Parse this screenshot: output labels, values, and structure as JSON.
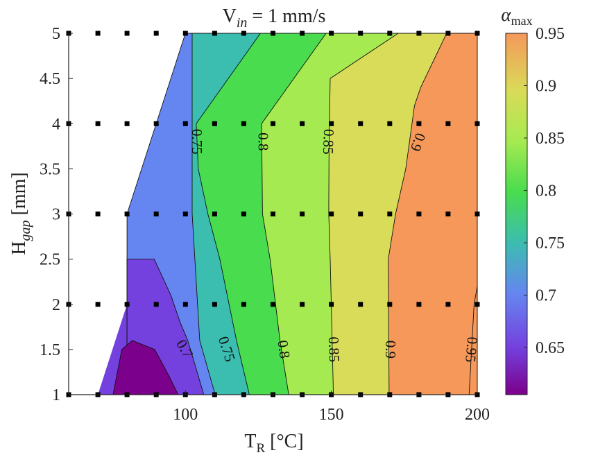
{
  "chart_data": {
    "type": "contour",
    "title": {
      "base": "V",
      "sub": "in",
      "rest": " = 1 mm/s"
    },
    "xlabel": {
      "base": "T",
      "sub": "R",
      "rest": " [°C]"
    },
    "ylabel": {
      "base": "H",
      "sub": "gap",
      "rest": " [mm]"
    },
    "colorbar_label": {
      "base": "α",
      "sub": "max"
    },
    "xlim": [
      60,
      200
    ],
    "ylim": [
      1,
      5
    ],
    "clim": [
      0.605,
      0.95
    ],
    "xticks": [
      {
        "value": 100,
        "label": "100"
      },
      {
        "value": 150,
        "label": "150"
      },
      {
        "value": 200,
        "label": "200"
      }
    ],
    "yticks": [
      {
        "value": 1,
        "label": "1"
      },
      {
        "value": 1.5,
        "label": "1.5"
      },
      {
        "value": 2,
        "label": "2"
      },
      {
        "value": 2.5,
        "label": "2.5"
      },
      {
        "value": 3,
        "label": "3"
      },
      {
        "value": 3.5,
        "label": "3.5"
      },
      {
        "value": 4,
        "label": "4"
      },
      {
        "value": 4.5,
        "label": "4.5"
      },
      {
        "value": 5,
        "label": "5"
      }
    ],
    "colorbar_ticks": [
      {
        "value": 0.65,
        "label": "0.65"
      },
      {
        "value": 0.7,
        "label": "0.7"
      },
      {
        "value": 0.75,
        "label": "0.75"
      },
      {
        "value": 0.8,
        "label": "0.8"
      },
      {
        "value": 0.85,
        "label": "0.85"
      },
      {
        "value": 0.9,
        "label": "0.9"
      },
      {
        "value": 0.95,
        "label": "0.95"
      }
    ],
    "colors": {
      "band_0.60": "#7b008b",
      "band_0.65": "#7440de",
      "band_0.70": "#6586f0",
      "band_0.75": "#3bbdb0",
      "band_0.80": "#48dc4e",
      "band_0.85": "#a5ea50",
      "band_0.90": "#d9dc58",
      "band_0.95": "#f5985a",
      "contour_line": "#111111",
      "marker": "#000000"
    },
    "sample_points": {
      "x": [
        70,
        80,
        90,
        100,
        110,
        120,
        130,
        140,
        150,
        160,
        170,
        180,
        190,
        200
      ],
      "y": [
        1,
        2,
        3,
        4,
        5
      ]
    },
    "domain_boundary": [
      [
        70,
        1
      ],
      [
        80,
        2
      ],
      [
        80,
        3
      ],
      [
        100,
        5
      ],
      [
        200,
        5
      ],
      [
        200,
        1
      ]
    ],
    "filled_regions": [
      {
        "level": 0.7,
        "points": [
          [
            80,
            3
          ],
          [
            100,
            5
          ],
          [
            200,
            5
          ],
          [
            200,
            1
          ],
          [
            80,
            1
          ]
        ]
      },
      {
        "level": 0.75,
        "points": [
          [
            102.3,
            5
          ],
          [
            200,
            5
          ],
          [
            200,
            1
          ],
          [
            110.2,
            1
          ],
          [
            104.9,
            1.6
          ],
          [
            102.3,
            3
          ]
        ]
      },
      {
        "level": 0.8,
        "points": [
          [
            125.7,
            5
          ],
          [
            200,
            5
          ],
          [
            200,
            1
          ],
          [
            121.9,
            1
          ],
          [
            117.5,
            1.6
          ],
          [
            111.8,
            2.5
          ],
          [
            107.7,
            3
          ],
          [
            104.4,
            3.5
          ],
          [
            103.7,
            4
          ]
        ]
      },
      {
        "level": 0.85,
        "points": [
          [
            148.2,
            5
          ],
          [
            200,
            5
          ],
          [
            200,
            1
          ],
          [
            135.4,
            1
          ],
          [
            132.4,
            1.6
          ],
          [
            129.0,
            2.5
          ],
          [
            126.4,
            3
          ],
          [
            126.1,
            4
          ]
        ]
      },
      {
        "level": 0.9,
        "points": [
          [
            172.9,
            5
          ],
          [
            200,
            5
          ],
          [
            200,
            1
          ],
          [
            150.7,
            1
          ],
          [
            149.6,
            2.5
          ],
          [
            149.1,
            3
          ],
          [
            149.2,
            3.7
          ],
          [
            149.6,
            4.5
          ]
        ]
      },
      {
        "level": 0.95,
        "points": [
          [
            189.5,
            5
          ],
          [
            200,
            5
          ],
          [
            200,
            1
          ],
          [
            169.8,
            1
          ],
          [
            169.5,
            2.5
          ],
          [
            172.0,
            3
          ],
          [
            175.5,
            3.5
          ],
          [
            178.5,
            4.2
          ],
          [
            180.6,
            4.4
          ]
        ]
      },
      {
        "level": 0.95,
        "points": [
          [
            200,
            2.2
          ],
          [
            200,
            1
          ],
          [
            197.2,
            1
          ],
          [
            198.9,
            2
          ]
        ]
      }
    ],
    "low_regions": [
      {
        "level": 0.65,
        "points": [
          [
            80,
            1
          ],
          [
            80,
            2.5
          ],
          [
            89.3,
            2.5
          ],
          [
            95.0,
            2.1
          ],
          [
            98.2,
            1.8
          ],
          [
            100.8,
            1.6
          ],
          [
            106.3,
            1.0
          ]
        ]
      },
      {
        "level": 0.6,
        "points": [
          [
            75.2,
            1
          ],
          [
            78.2,
            1.5
          ],
          [
            81.8,
            1.6
          ],
          [
            89.5,
            1.5
          ],
          [
            94.5,
            1.2
          ],
          [
            97.5,
            1
          ]
        ]
      }
    ],
    "contour_labels": [
      {
        "text": "0.75",
        "x": 103.5,
        "y": 3.8,
        "rotation": 90
      },
      {
        "text": "0.8",
        "x": 126.2,
        "y": 3.8,
        "rotation": 90
      },
      {
        "text": "0.85",
        "x": 148.5,
        "y": 3.8,
        "rotation": 92
      },
      {
        "text": "0.9",
        "x": 179.2,
        "y": 3.8,
        "rotation": 110
      },
      {
        "text": "0.7",
        "x": 99.3,
        "y": 1.5,
        "rotation": 60
      },
      {
        "text": "0.75",
        "x": 113.7,
        "y": 1.5,
        "rotation": 72
      },
      {
        "text": "0.8",
        "x": 133.2,
        "y": 1.5,
        "rotation": 82
      },
      {
        "text": "0.85",
        "x": 150.4,
        "y": 1.5,
        "rotation": 88
      },
      {
        "text": "0.9",
        "x": 169.8,
        "y": 1.5,
        "rotation": 90
      },
      {
        "text": "0.95",
        "x": 197.5,
        "y": 1.5,
        "rotation": 95
      }
    ]
  }
}
